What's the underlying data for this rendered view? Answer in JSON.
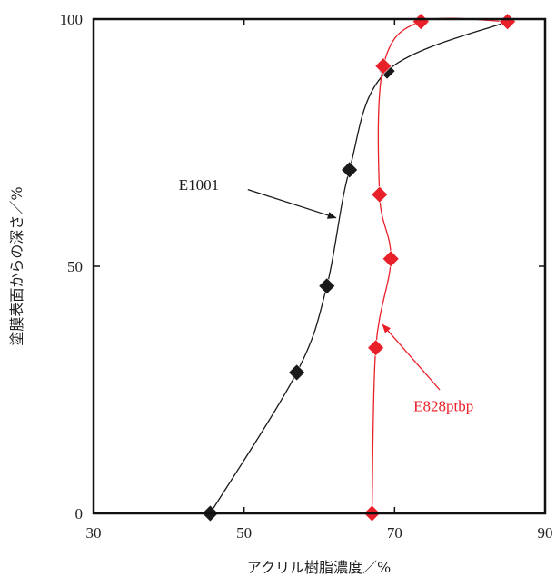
{
  "chart_data": {
    "type": "line",
    "xlabel": "アクリル樹脂濃度／%",
    "ylabel": "塗膜表面からの深さ／%",
    "xlim": [
      30,
      90
    ],
    "ylim": [
      0,
      100
    ],
    "xticks": [
      30,
      50,
      70,
      90
    ],
    "yticks": [
      0,
      50,
      100
    ],
    "grid": false,
    "series": [
      {
        "name": "E1001",
        "color": "#1a1a1a",
        "marker": "diamond",
        "points": [
          {
            "x": 45.5,
            "y": 0
          },
          {
            "x": 57.0,
            "y": 28.5
          },
          {
            "x": 61.0,
            "y": 46.0
          },
          {
            "x": 64.0,
            "y": 69.5
          },
          {
            "x": 69.0,
            "y": 89.5
          },
          {
            "x": 85.0,
            "y": 99.5
          }
        ]
      },
      {
        "name": "E828ptbp",
        "color": "#e8202a",
        "marker": "diamond",
        "points": [
          {
            "x": 67.0,
            "y": 0
          },
          {
            "x": 67.5,
            "y": 33.5
          },
          {
            "x": 69.5,
            "y": 51.5
          },
          {
            "x": 68.0,
            "y": 64.5
          },
          {
            "x": 68.5,
            "y": 90.5
          },
          {
            "x": 73.5,
            "y": 99.5
          },
          {
            "x": 85.0,
            "y": 99.5
          }
        ]
      }
    ],
    "annotations": [
      {
        "text": "E1001",
        "color": "#1a1a1a",
        "text_at": [
          44.0,
          66.5
        ],
        "arrow_from": [
          50.5,
          65.5
        ],
        "arrow_to": [
          62.2,
          59.8
        ],
        "anchor": "middle"
      },
      {
        "text": "E828ptbp",
        "color": "#e8202a",
        "text_at": [
          76.5,
          21.8
        ],
        "arrow_from": [
          76.0,
          25.0
        ],
        "arrow_to": [
          68.4,
          38.2
        ],
        "anchor": "middle"
      }
    ]
  }
}
